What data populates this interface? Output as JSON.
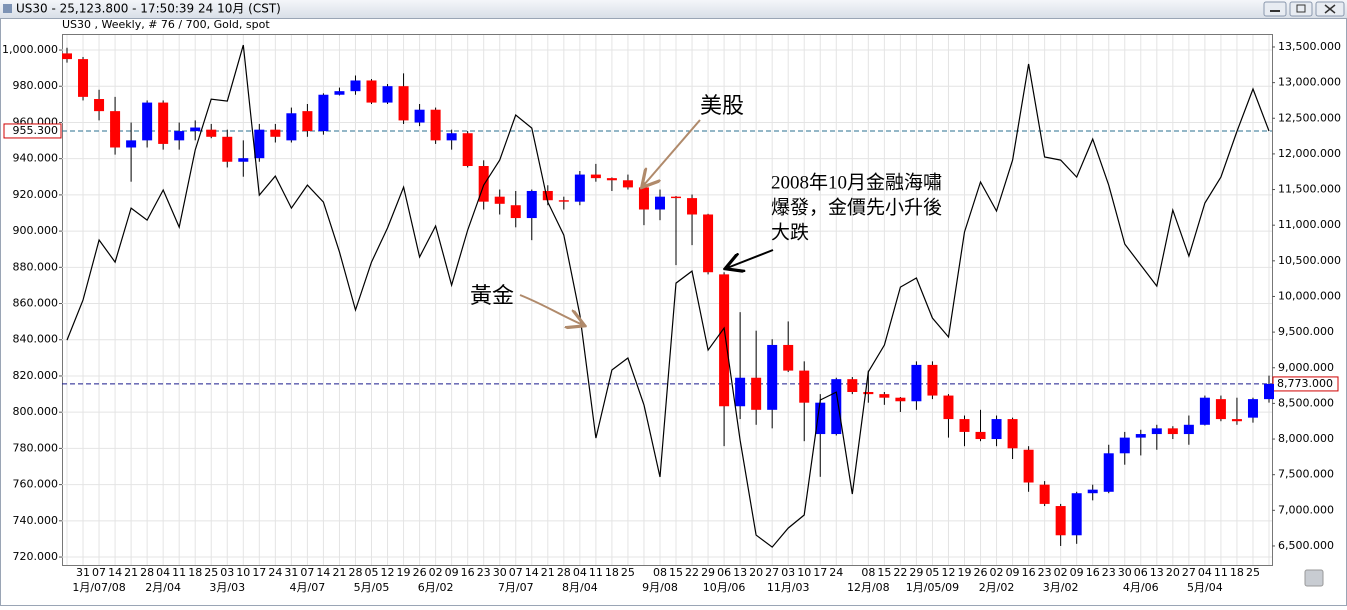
{
  "window_title": "US30 - 25,123.800 - 17:50:39  24 10月 (CST)",
  "chart_data": {
    "type": "candlestick",
    "info": "US30 , Weekly, # 76 / 700, Gold, spot",
    "categories": [
      null,
      "31",
      "07",
      "14",
      "21",
      "28",
      "04",
      "11",
      "18",
      "25",
      "03",
      "10",
      "17",
      "24",
      "31",
      "07",
      "14",
      "21",
      "28",
      "05",
      "12",
      "19",
      "26",
      "02",
      "09",
      "16",
      "23",
      "30",
      "07",
      "14",
      "21",
      "28",
      "04",
      "11",
      "18",
      "25",
      null,
      "08",
      "15",
      "22",
      "29",
      "06",
      "13",
      "20",
      "27",
      "03",
      "10",
      "17",
      "24",
      null,
      "08",
      "15",
      "22",
      "29",
      "05",
      "12",
      "19",
      "26",
      "02",
      "09",
      "16",
      "23",
      "02",
      "09",
      "16",
      "23",
      "30",
      "06",
      "13",
      "20",
      "27",
      "04",
      "11",
      "18",
      "25",
      null
    ],
    "period_labels": [
      null,
      null,
      "1月/07/08",
      null,
      null,
      null,
      "2月/04",
      null,
      null,
      null,
      "3月/03",
      null,
      null,
      null,
      null,
      "4月/07",
      null,
      null,
      null,
      "5月/05",
      null,
      null,
      null,
      "6月/02",
      null,
      null,
      null,
      null,
      "7月/07",
      null,
      null,
      null,
      "8月/04",
      null,
      null,
      null,
      null,
      "9月/08",
      null,
      null,
      null,
      "10月/06",
      null,
      null,
      null,
      "11月/03",
      null,
      null,
      null,
      null,
      "12月/08",
      null,
      null,
      null,
      "1月/05/09",
      null,
      null,
      null,
      "2月/02",
      null,
      null,
      null,
      "3月/02",
      null,
      null,
      null,
      null,
      "4月/06",
      null,
      null,
      null,
      "5月/04",
      null,
      null,
      null,
      null
    ],
    "series": [
      {
        "type": "candlestick",
        "axis": "y2",
        "up_color": "#0000ff",
        "down_color": "#ff0000",
        "open": [
          13410,
          13330,
          12770,
          12600,
          12090,
          12190,
          12720,
          12190,
          12320,
          12340,
          12240,
          11890,
          11940,
          12340,
          12190,
          12600,
          12320,
          12830,
          12880,
          13030,
          12720,
          12950,
          12440,
          12620,
          12190,
          12290,
          11830,
          11400,
          11280,
          11100,
          11480,
          11350,
          11330,
          11710,
          11660,
          11630,
          11530,
          11220,
          11400,
          11380,
          11150,
          10310,
          8460,
          8860,
          8410,
          9320,
          8960,
          8070,
          8070,
          8840,
          8660,
          8630,
          8580,
          8530,
          9040,
          8610,
          8280,
          8100,
          8000,
          8280,
          7850,
          7360,
          7060,
          6650,
          7240,
          7260,
          7800,
          8020,
          8070,
          8150,
          8070,
          8200,
          8560,
          8280,
          8300,
          8560
        ],
        "high": [
          13490,
          13360,
          12900,
          12800,
          12440,
          12750,
          12750,
          12440,
          12470,
          12420,
          12340,
          12190,
          12420,
          12420,
          12650,
          12700,
          12850,
          12930,
          13100,
          13050,
          12980,
          13130,
          12700,
          12650,
          12340,
          12320,
          11910,
          11500,
          11480,
          11500,
          11560,
          11400,
          11760,
          11860,
          11670,
          11710,
          11710,
          11500,
          11410,
          11430,
          11160,
          10340,
          9780,
          9520,
          9400,
          9650,
          9090,
          8630,
          8860,
          8870,
          8960,
          8660,
          8590,
          9090,
          9090,
          8630,
          8330,
          8410,
          8330,
          8300,
          7900,
          7410,
          7090,
          7260,
          7360,
          7920,
          8100,
          8130,
          8200,
          8180,
          8330,
          8610,
          8610,
          8580,
          8580,
          8890
        ],
        "low": [
          13280,
          12750,
          12470,
          11990,
          11610,
          12090,
          12060,
          12060,
          12190,
          12220,
          11810,
          11680,
          11890,
          12160,
          12160,
          12240,
          12270,
          12820,
          12830,
          12700,
          12700,
          12420,
          12390,
          12140,
          12060,
          11810,
          11220,
          11150,
          10970,
          10790,
          11280,
          11220,
          11280,
          11610,
          11480,
          11500,
          11000,
          11070,
          10440,
          10720,
          10310,
          7900,
          8280,
          8200,
          8150,
          8940,
          7970,
          7470,
          8050,
          8630,
          8510,
          8480,
          8380,
          8410,
          8560,
          8020,
          7900,
          7970,
          7900,
          7720,
          7260,
          7060,
          6500,
          6530,
          7140,
          7240,
          7640,
          7770,
          7850,
          8000,
          7920,
          8190,
          8250,
          8200,
          8230,
          8510
        ],
        "close": [
          13330,
          12800,
          12600,
          12090,
          12190,
          12720,
          12140,
          12320,
          12370,
          12240,
          11890,
          11940,
          12340,
          12240,
          12570,
          12320,
          12830,
          12880,
          13030,
          12720,
          12950,
          12470,
          12620,
          12190,
          12290,
          11830,
          11330,
          11300,
          11100,
          11480,
          11350,
          11330,
          11710,
          11660,
          11630,
          11530,
          11220,
          11400,
          11380,
          11150,
          10340,
          8460,
          8860,
          8410,
          9320,
          8960,
          8510,
          8510,
          8840,
          8660,
          8630,
          8580,
          8530,
          9040,
          8610,
          8280,
          8100,
          8000,
          8280,
          7870,
          7390,
          7090,
          6650,
          7240,
          7290,
          7800,
          8020,
          8070,
          8150,
          8070,
          8200,
          8580,
          8280,
          8250,
          8560,
          8773
        ]
      },
      {
        "type": "line",
        "axis": "y",
        "color": "#000000",
        "values": [
          839.8,
          861.9,
          895.1,
          882.9,
          912.7,
          906.1,
          922.7,
          902.2,
          944.8,
          972.9,
          971.8,
          1002.7,
          919.9,
          930.4,
          912.7,
          925.4,
          916.0,
          888.4,
          856.4,
          882.9,
          901.7,
          924.3,
          885.7,
          902.8,
          870.2,
          900.6,
          925.4,
          939.2,
          964.1,
          956.9,
          916.0,
          897.8,
          853.6,
          785.7,
          823.3,
          829.9,
          803.9,
          764.2,
          871.3,
          877.9,
          834.3,
          846.5,
          784.6,
          732.1,
          725.5,
          736.0,
          743.2,
          806.7,
          811.1,
          754.8,
          822.2,
          837.1,
          869.1,
          874.1,
          852.0,
          841.5,
          899.5,
          927.1,
          911.1,
          939.2,
          992.3,
          940.9,
          939.2,
          929.8,
          950.8,
          925.4,
          892.8,
          881.2,
          869.6,
          911.6,
          886.2,
          915.5,
          929.8,
          955.0,
          978.5,
          955.3
        ]
      }
    ],
    "ylim": [
      715.6,
      1008.3
    ],
    "yticks": [
      {
        "value": 720,
        "label": "720.000"
      },
      {
        "value": 740,
        "label": "740.000"
      },
      {
        "value": 760,
        "label": "760.000"
      },
      {
        "value": 780,
        "label": "780.000"
      },
      {
        "value": 800,
        "label": "800.000"
      },
      {
        "value": 820,
        "label": "820.000"
      },
      {
        "value": 840,
        "label": "840.000"
      },
      {
        "value": 860,
        "label": "860.000"
      },
      {
        "value": 880,
        "label": "880.000"
      },
      {
        "value": 900,
        "label": "900.000"
      },
      {
        "value": 920,
        "label": "920.000"
      },
      {
        "value": 940,
        "label": "940.000"
      },
      {
        "value": 960,
        "label": "960.000"
      },
      {
        "value": 980,
        "label": "980.000"
      },
      {
        "value": 1000,
        "label": "1,000.000"
      }
    ],
    "y2lim": [
      6233,
      13668
    ],
    "y2ticks": [
      {
        "value": 6500,
        "label": "6,500.000"
      },
      {
        "value": 7000,
        "label": "7,000.000"
      },
      {
        "value": 7500,
        "label": "7,500.000"
      },
      {
        "value": 8000,
        "label": "8,000.000"
      },
      {
        "value": 8500,
        "label": "8,500.000"
      },
      {
        "value": 9000,
        "label": "9,000.000"
      },
      {
        "value": 9500,
        "label": "9,500.000"
      },
      {
        "value": 10000,
        "label": "10,000.000"
      },
      {
        "value": 10500,
        "label": "10,500.000"
      },
      {
        "value": 11000,
        "label": "11,000.000"
      },
      {
        "value": 11500,
        "label": "11,500.000"
      },
      {
        "value": 12000,
        "label": "12,000.000"
      },
      {
        "value": 12500,
        "label": "12,500.000"
      },
      {
        "value": 13000,
        "label": "13,000.000"
      },
      {
        "value": 13500,
        "label": "13,500.000"
      }
    ],
    "markers": [
      {
        "axis": "y",
        "value": 955.3,
        "label": "955.300",
        "color": "#2a6f8f"
      },
      {
        "axis": "y2",
        "value": 8773,
        "label": "8,773.000",
        "color": "#1a1a8c"
      }
    ],
    "grid": true,
    "annotations": [
      {
        "text": "美股",
        "color": "#b08a6b"
      },
      {
        "text": "黃金",
        "color": "#b08a6b"
      },
      {
        "lines": [
          "2008年10月金融海嘯",
          "爆發，金價先小升後",
          "大跌"
        ],
        "color": "#000000"
      }
    ]
  }
}
